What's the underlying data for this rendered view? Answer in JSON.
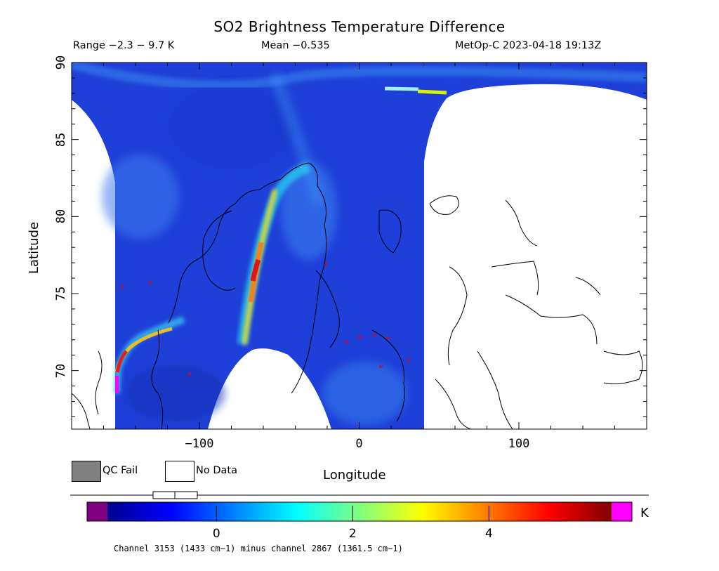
{
  "header": {
    "title": "SO2 Brightness Temperature Difference",
    "range_text": "Range −2.3 − 9.7 K",
    "mean_text": "Mean −0.535",
    "satellite_time": "MetOp-C 2023-04-18 19:13Z"
  },
  "axes": {
    "xlabel": "Longitude",
    "ylabel": "Latitude",
    "x_ticks": [
      {
        "value": -100,
        "label": "−100"
      },
      {
        "value": 0,
        "label": "0"
      },
      {
        "value": 100,
        "label": "100"
      }
    ],
    "y_ticks": [
      {
        "value": 70,
        "label": "70"
      },
      {
        "value": 75,
        "label": "75"
      },
      {
        "value": 80,
        "label": "80"
      },
      {
        "value": 85,
        "label": "85"
      },
      {
        "value": 90,
        "label": "90"
      }
    ],
    "xlim": [
      -180,
      180
    ],
    "ylim": [
      66.2,
      90
    ]
  },
  "legend": {
    "qc_fail_label": "QC Fail",
    "no_data_label": "No Data",
    "qc_fail_color": "#808080",
    "no_data_color": "#ffffff"
  },
  "colorbar": {
    "unit": "K",
    "ticks": [
      {
        "value": 0,
        "label": "0"
      },
      {
        "value": 2,
        "label": "2"
      },
      {
        "value": 4,
        "label": "4"
      }
    ],
    "vmin": -1.6,
    "vmax": 5.8,
    "underflow_color": "#800080",
    "overflow_color": "#ff00ff",
    "colormap": "jet"
  },
  "footnote": "Channel 3153 (1433 cm−1) minus channel 2867 (1361.5 cm−1)",
  "colors": {
    "background_field": "#1e3fd8",
    "plume_high": "#e0151a",
    "plume_peak": "#ff00ff"
  }
}
